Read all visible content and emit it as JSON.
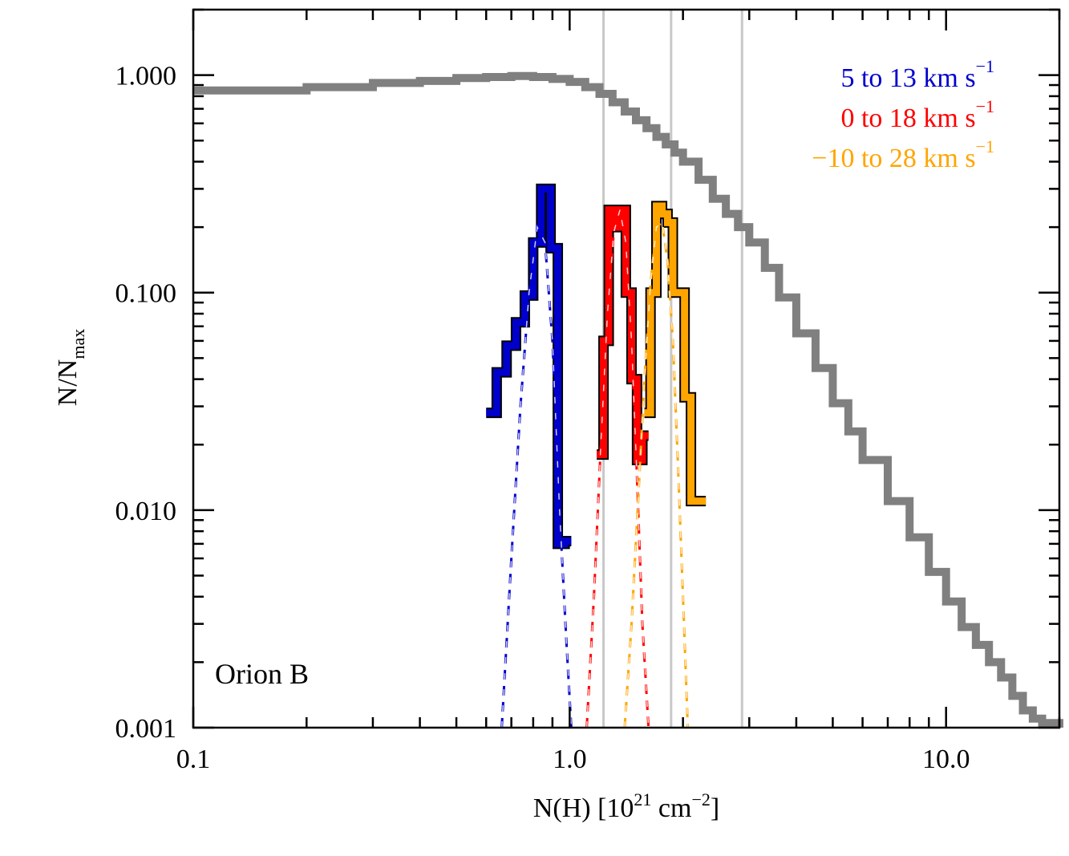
{
  "chart_data": {
    "type": "line",
    "xscale": "log",
    "yscale": "log",
    "xlim": [
      0.1,
      20.0
    ],
    "ylim": [
      0.001,
      2.0
    ],
    "xlabel": {
      "base": "N(H) [10",
      "sup1": "21",
      "mid": " cm",
      "sup2": "−2",
      "end": "]"
    },
    "ylabel": {
      "base": "N/N",
      "sub": "max"
    },
    "annotation": "Orion B",
    "x_ticks": [
      {
        "value": 0.1,
        "label": "0.1"
      },
      {
        "value": 1.0,
        "label": "1.0"
      },
      {
        "value": 10.0,
        "label": "10.0"
      }
    ],
    "y_ticks": [
      {
        "value": 0.001,
        "label": "0.001"
      },
      {
        "value": 0.01,
        "label": "0.010"
      },
      {
        "value": 0.1,
        "label": "0.100"
      },
      {
        "value": 1.0,
        "label": "1.000"
      }
    ],
    "vlines": [
      1.23,
      1.86,
      2.87
    ],
    "legend": [
      {
        "name": "5 to 13 km s",
        "sup": "−1",
        "color": "#0000cc"
      },
      {
        "name": "0 to 18 km s",
        "sup": "−1",
        "color": "#ff0000"
      },
      {
        "name": "−10 to 28 km s",
        "sup": "−1",
        "color": "#ffa500"
      }
    ],
    "total_pdf": {
      "name": "all",
      "color": "#808080",
      "x": [
        0.1,
        0.2,
        0.3,
        0.4,
        0.5,
        0.6,
        0.7,
        0.8,
        0.9,
        1.0,
        1.1,
        1.2,
        1.3,
        1.4,
        1.5,
        1.6,
        1.7,
        1.8,
        1.9,
        2.0,
        2.2,
        2.4,
        2.6,
        2.8,
        3.0,
        3.3,
        3.6,
        4.0,
        4.5,
        5.0,
        5.5,
        6.0,
        7.0,
        8.0,
        9.0,
        10.0,
        11.0,
        12.0,
        13.0,
        14.0,
        15.0,
        16.0,
        17.0,
        18.0,
        20.0
      ],
      "y": [
        0.85,
        0.88,
        0.92,
        0.94,
        0.97,
        0.98,
        0.99,
        0.98,
        0.96,
        0.93,
        0.88,
        0.82,
        0.75,
        0.68,
        0.62,
        0.57,
        0.52,
        0.48,
        0.44,
        0.4,
        0.33,
        0.27,
        0.23,
        0.2,
        0.17,
        0.13,
        0.095,
        0.065,
        0.045,
        0.031,
        0.023,
        0.017,
        0.011,
        0.0075,
        0.0052,
        0.0038,
        0.0029,
        0.0024,
        0.002,
        0.0017,
        0.0014,
        0.0012,
        0.0011,
        0.00105,
        0.001
      ]
    },
    "series": [
      {
        "name": "5 to 13 km s-1",
        "color": "#0000cc",
        "edges": [
          0.6,
          0.64,
          0.68,
          0.72,
          0.76,
          0.8,
          0.84,
          0.89,
          0.93,
          0.97,
          1.01
        ],
        "values": [
          0.028,
          0.043,
          0.057,
          0.073,
          0.097,
          0.17,
          0.3,
          0.16,
          0.007,
          0.0072
        ],
        "fit": {
          "x": [
            0.66,
            0.7,
            0.74,
            0.78,
            0.82,
            0.86,
            0.9,
            0.94,
            0.98,
            1.01
          ],
          "y": [
            0.001,
            0.006,
            0.03,
            0.1,
            0.2,
            0.17,
            0.06,
            0.01,
            0.0025,
            0.001
          ]
        }
      },
      {
        "name": "0 to 18 km s-1",
        "color": "#ff0000",
        "edges": [
          1.18,
          1.23,
          1.27,
          1.31,
          1.36,
          1.41,
          1.46,
          1.51,
          1.56,
          1.62
        ],
        "values": [
          0.018,
          0.06,
          0.24,
          0.2,
          0.24,
          0.1,
          0.04,
          0.017,
          0.022
        ],
        "fit": {
          "x": [
            1.11,
            1.16,
            1.21,
            1.26,
            1.31,
            1.36,
            1.41,
            1.46,
            1.51,
            1.56,
            1.62
          ],
          "y": [
            0.001,
            0.004,
            0.02,
            0.08,
            0.19,
            0.24,
            0.17,
            0.06,
            0.014,
            0.003,
            0.001
          ]
        }
      },
      {
        "name": "-10 to 28 km s-1",
        "color": "#ffa500",
        "edges": [
          1.58,
          1.64,
          1.7,
          1.76,
          1.82,
          1.88,
          1.95,
          2.02,
          2.1,
          2.2,
          2.3
        ],
        "values": [
          0.028,
          0.1,
          0.25,
          0.23,
          0.21,
          0.1,
          0.1,
          0.033,
          0.011,
          0.011
        ],
        "fit": {
          "x": [
            1.4,
            1.46,
            1.52,
            1.58,
            1.64,
            1.7,
            1.76,
            1.82,
            1.88,
            1.94,
            2.0,
            2.06
          ],
          "y": [
            0.001,
            0.003,
            0.011,
            0.04,
            0.11,
            0.2,
            0.21,
            0.14,
            0.06,
            0.016,
            0.004,
            0.001
          ]
        }
      }
    ]
  }
}
